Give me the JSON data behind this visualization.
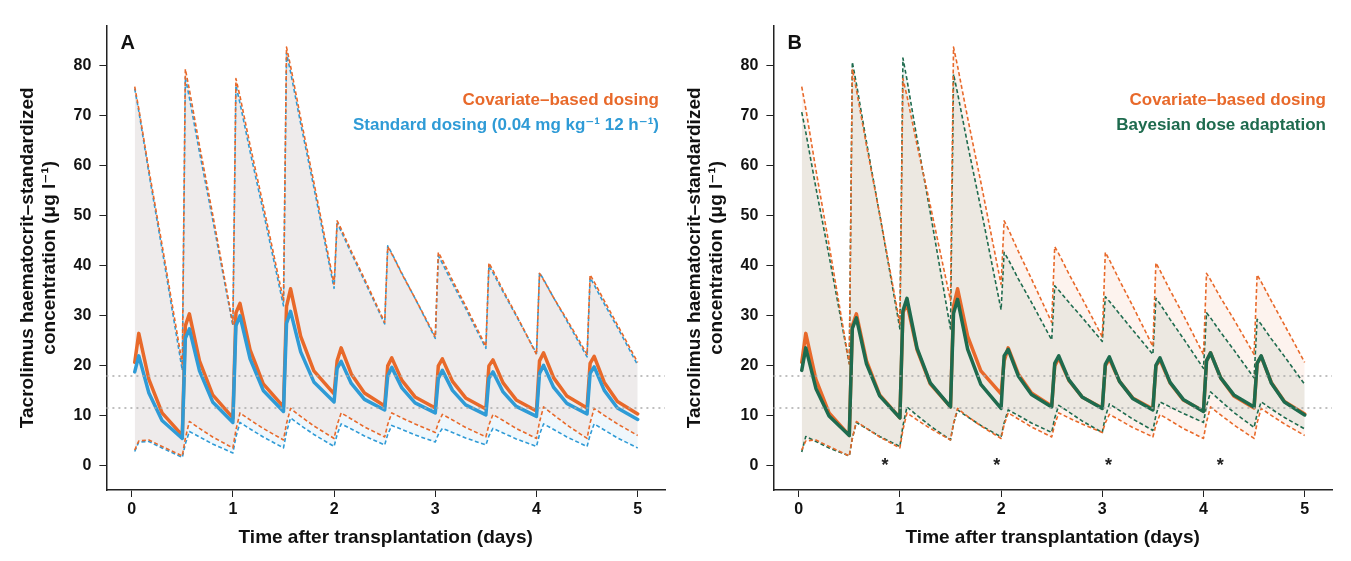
{
  "chart_data": [
    {
      "type": "line",
      "title": "A",
      "xlabel": "Time after transplantation (days)",
      "ylabel": "Tacrolimus haematocrit–standardized concentration (μg l⁻¹)",
      "xlim": [
        -0.25,
        5.27
      ],
      "xticks": [
        0,
        1,
        2,
        3,
        4,
        5
      ],
      "ylim": [
        -4.8,
        88
      ],
      "yticks": [
        0,
        10,
        20,
        30,
        40,
        50,
        60,
        70,
        80
      ],
      "legend": "top right",
      "ref_lines": [
        {
          "axis": "y",
          "value": 18,
          "color": "#aaaaaa",
          "line_style": "dotted"
        },
        {
          "axis": "y",
          "value": 11.6,
          "color": "#aaaaaa",
          "line_style": "dotted"
        }
      ],
      "x": [
        0.03,
        0.07,
        0.17,
        0.3,
        0.5,
        0.53,
        0.57,
        0.67,
        0.8,
        1.0,
        1.03,
        1.07,
        1.17,
        1.3,
        1.5,
        1.53,
        1.57,
        1.67,
        1.8,
        2.0,
        2.03,
        2.07,
        2.17,
        2.3,
        2.5,
        2.53,
        2.57,
        2.67,
        2.8,
        3.0,
        3.03,
        3.07,
        3.17,
        3.3,
        3.5,
        3.53,
        3.57,
        3.67,
        3.8,
        4.0,
        4.03,
        4.07,
        4.17,
        4.3,
        4.5,
        4.53,
        4.57,
        4.67,
        4.8,
        5.0
      ],
      "series": [
        {
          "name": "Covariate–based dosing",
          "color": "#e8692a",
          "values": [
            20.7,
            26.5,
            17.3,
            10.6,
            6.1,
            28.0,
            30.4,
            21.0,
            14.2,
            9.6,
            30.6,
            32.5,
            23.2,
            16.4,
            11.8,
            31.9,
            35.4,
            25.9,
            19.0,
            14.4,
            21.0,
            23.6,
            18.4,
            14.6,
            12.0,
            20.0,
            21.6,
            17.1,
            13.8,
            11.6,
            20.0,
            21.4,
            16.9,
            13.6,
            11.4,
            20.0,
            21.2,
            16.6,
            13.2,
            11.0,
            21.0,
            22.6,
            17.6,
            14.0,
            11.6,
            20.5,
            21.9,
            16.7,
            12.9,
            10.4
          ],
          "upper": [
            75.8,
            71.4,
            59.2,
            44.2,
            20.4,
            79.3,
            75.2,
            64.0,
            50.3,
            28.4,
            77.4,
            73.9,
            64.1,
            52.1,
            33.1,
            83.7,
            79.9,
            69.5,
            56.7,
            36.3,
            49.0,
            47.4,
            42.9,
            37.4,
            28.7,
            43.8,
            42.4,
            38.4,
            33.5,
            25.8,
            42.7,
            41.2,
            37.1,
            32.0,
            23.9,
            40.6,
            39.1,
            35.1,
            30.2,
            22.3,
            38.5,
            37.2,
            33.6,
            29.3,
            22.3,
            38.2,
            36.8,
            33.0,
            28.2,
            20.7
          ],
          "lower": [
            3.2,
            5.0,
            5.2,
            3.9,
            2.0,
            5.5,
            8.9,
            7.5,
            5.8,
            3.6,
            7.2,
            10.6,
            9.2,
            7.5,
            5.2,
            8.5,
            11.5,
            9.9,
            8.0,
            5.5,
            8.2,
            10.6,
            9.4,
            7.8,
            5.8,
            8.3,
            10.6,
            9.6,
            8.4,
            6.7,
            8.6,
            10.3,
            9.2,
            7.7,
            5.8,
            8.2,
            10.3,
            9.1,
            7.5,
            5.5,
            8.8,
            11.8,
            10.2,
            8.2,
            5.5,
            8.6,
            11.5,
            10.1,
            8.4,
            6.1
          ]
        },
        {
          "name": "Standard dosing (0.04 mg kg⁻¹ 12 h⁻¹)",
          "color": "#2f9bd6",
          "values": [
            18.8,
            22.0,
            14.6,
            9.1,
            5.5,
            25.5,
            27.4,
            19.0,
            12.8,
            8.7,
            28.0,
            30.0,
            21.4,
            15.1,
            10.9,
            28.5,
            30.9,
            22.8,
            16.8,
            12.8,
            19.5,
            20.9,
            16.5,
            13.3,
            11.2,
            18.0,
            19.7,
            15.6,
            12.6,
            10.6,
            17.5,
            19.1,
            15.1,
            12.2,
            10.2,
            17.5,
            18.8,
            14.8,
            11.9,
            9.9,
            18.5,
            20.1,
            15.7,
            12.5,
            10.4,
            18.5,
            19.8,
            15.1,
            11.6,
            9.3
          ],
          "upper": [
            75.4,
            70.9,
            58.5,
            43.3,
            19.1,
            77.6,
            73.6,
            62.7,
            49.3,
            28.0,
            76.0,
            72.5,
            62.8,
            50.9,
            32.0,
            82.5,
            78.7,
            68.4,
            55.7,
            35.5,
            48.5,
            46.9,
            42.5,
            37.0,
            28.4,
            44.0,
            42.5,
            38.5,
            33.5,
            25.5,
            42.0,
            40.5,
            36.5,
            31.5,
            23.5,
            40.0,
            38.6,
            34.8,
            30.0,
            22.5,
            38.6,
            37.3,
            33.6,
            29.0,
            21.8,
            37.6,
            36.2,
            32.4,
            27.7,
            20.2
          ],
          "lower": [
            2.9,
            4.8,
            4.9,
            3.6,
            1.7,
            4.4,
            6.9,
            5.8,
            4.4,
            2.6,
            5.8,
            8.7,
            7.4,
            5.8,
            3.6,
            6.8,
            9.6,
            8.1,
            6.3,
            3.9,
            6.3,
            8.4,
            7.4,
            6.0,
            4.2,
            6.3,
            8.1,
            7.3,
            6.2,
            4.8,
            6.3,
            7.5,
            6.7,
            5.6,
            4.2,
            6.0,
            7.5,
            6.6,
            5.4,
            3.9,
            6.3,
            8.4,
            7.3,
            5.8,
            3.9,
            6.2,
            8.4,
            7.2,
            5.6,
            3.6
          ]
        },
        {
          "color": "#e8692a",
          "line_style": "dashed",
          "values": [
            75.8,
            71.4,
            59.2,
            44.2,
            20.4,
            79.3,
            75.2,
            64.0,
            50.3,
            28.4,
            77.4,
            73.9,
            64.1,
            52.1,
            33.1,
            83.7,
            79.9,
            69.5,
            56.7,
            36.3,
            49.0,
            47.4,
            42.9,
            37.4,
            28.7,
            43.8,
            42.4,
            38.4,
            33.5,
            25.8,
            42.7,
            41.2,
            37.1,
            32.0,
            23.9,
            40.6,
            39.1,
            35.1,
            30.2,
            22.3,
            38.5,
            37.2,
            33.6,
            29.3,
            22.3,
            38.2,
            36.8,
            33.0,
            28.2,
            20.7
          ]
        },
        {
          "color": "#e8692a",
          "line_style": "dashed",
          "values": [
            3.2,
            5.0,
            5.2,
            3.9,
            2.0,
            5.5,
            8.9,
            7.5,
            5.8,
            3.6,
            7.2,
            10.6,
            9.2,
            7.5,
            5.2,
            8.5,
            11.5,
            9.9,
            8.0,
            5.5,
            8.2,
            10.6,
            9.4,
            7.8,
            5.8,
            8.3,
            10.6,
            9.6,
            8.4,
            6.7,
            8.6,
            10.3,
            9.2,
            7.7,
            5.8,
            8.2,
            10.3,
            9.1,
            7.5,
            5.5,
            8.8,
            11.8,
            10.2,
            8.2,
            5.5,
            8.6,
            11.5,
            10.1,
            8.4,
            6.1
          ]
        },
        {
          "color": "#2f9bd6",
          "line_style": "dashed",
          "values": [
            75.4,
            70.9,
            58.5,
            43.3,
            19.1,
            77.6,
            73.6,
            62.7,
            49.3,
            28.0,
            76.0,
            72.5,
            62.8,
            50.9,
            32.0,
            82.5,
            78.7,
            68.4,
            55.7,
            35.5,
            48.5,
            46.9,
            42.5,
            37.0,
            28.4,
            44.0,
            42.5,
            38.5,
            33.5,
            25.5,
            42.0,
            40.5,
            36.5,
            31.5,
            23.5,
            40.0,
            38.6,
            34.8,
            30.0,
            22.5,
            38.6,
            37.3,
            33.6,
            29.0,
            21.8,
            37.6,
            36.2,
            32.4,
            27.7,
            20.2
          ]
        },
        {
          "color": "#2f9bd6",
          "line_style": "dashed",
          "values": [
            2.9,
            4.8,
            4.9,
            3.6,
            1.7,
            4.4,
            6.9,
            5.8,
            4.4,
            2.6,
            5.8,
            8.7,
            7.4,
            5.8,
            3.6,
            6.8,
            9.6,
            8.1,
            6.3,
            3.9,
            6.3,
            8.4,
            7.4,
            6.0,
            4.2,
            6.3,
            8.1,
            7.3,
            6.2,
            4.8,
            6.3,
            7.5,
            6.7,
            5.6,
            4.2,
            6.0,
            7.5,
            6.6,
            5.4,
            3.9,
            6.3,
            8.4,
            7.3,
            5.8,
            3.9,
            6.2,
            8.4,
            7.2,
            5.6,
            3.6
          ]
        }
      ]
    },
    {
      "type": "line",
      "title": "B",
      "xlabel": "Time after transplantation (days)",
      "ylabel": "Tacrolimus haematocrit–standardized concentration (μg l⁻¹)",
      "xlim": [
        -0.25,
        5.27
      ],
      "xticks": [
        0,
        1,
        2,
        3,
        4,
        5
      ],
      "ylim": [
        -4.8,
        88
      ],
      "yticks": [
        0,
        10,
        20,
        30,
        40,
        50,
        60,
        70,
        80
      ],
      "legend": "top right",
      "ref_lines": [
        {
          "axis": "y",
          "value": 18,
          "color": "#aaaaaa",
          "line_style": "dotted"
        },
        {
          "axis": "y",
          "value": 11.6,
          "color": "#aaaaaa",
          "line_style": "dotted"
        }
      ],
      "annotations": [
        "*",
        "*",
        "*",
        "*"
      ],
      "x": [
        0.03,
        0.07,
        0.17,
        0.3,
        0.5,
        0.53,
        0.57,
        0.67,
        0.8,
        1.0,
        1.03,
        1.07,
        1.17,
        1.3,
        1.5,
        1.53,
        1.57,
        1.67,
        1.8,
        2.0,
        2.03,
        2.07,
        2.17,
        2.3,
        2.5,
        2.53,
        2.57,
        2.67,
        2.8,
        3.0,
        3.03,
        3.07,
        3.17,
        3.3,
        3.5,
        3.53,
        3.57,
        3.67,
        3.8,
        4.0,
        4.03,
        4.07,
        4.17,
        4.3,
        4.5,
        4.53,
        4.57,
        4.67,
        4.8,
        5.0
      ],
      "series": [
        {
          "name": "Covariate–based dosing",
          "color": "#e8692a",
          "values": [
            20.7,
            26.5,
            17.3,
            10.6,
            6.1,
            28.0,
            30.4,
            21.0,
            14.2,
            9.6,
            30.6,
            32.5,
            23.2,
            16.4,
            11.8,
            31.9,
            35.4,
            25.9,
            19.0,
            14.4,
            21.0,
            23.6,
            18.4,
            14.6,
            12.0,
            20.0,
            21.6,
            17.1,
            13.8,
            11.6,
            20.0,
            21.4,
            16.9,
            13.6,
            11.4,
            20.0,
            21.2,
            16.6,
            13.2,
            11.0,
            21.0,
            22.6,
            17.6,
            14.0,
            11.6,
            20.5,
            21.9,
            16.7,
            12.9,
            10.4
          ],
          "upper": [
            75.8,
            71.4,
            59.2,
            44.2,
            20.4,
            79.3,
            75.2,
            64.0,
            50.3,
            28.4,
            77.4,
            73.9,
            64.1,
            52.1,
            33.1,
            83.7,
            79.9,
            69.5,
            56.7,
            36.3,
            49.0,
            47.4,
            42.9,
            37.4,
            28.7,
            43.8,
            42.4,
            38.4,
            33.5,
            25.8,
            42.7,
            41.2,
            37.1,
            32.0,
            23.9,
            40.6,
            39.1,
            35.1,
            30.2,
            22.3,
            38.5,
            37.2,
            33.6,
            29.3,
            22.3,
            38.2,
            36.8,
            33.0,
            28.2,
            20.7
          ],
          "lower": [
            3.2,
            5.0,
            5.2,
            3.9,
            2.0,
            5.5,
            8.9,
            7.5,
            5.8,
            3.6,
            7.2,
            10.6,
            9.2,
            7.5,
            5.2,
            8.5,
            11.5,
            9.9,
            8.0,
            5.5,
            8.2,
            10.6,
            9.4,
            7.8,
            5.8,
            8.3,
            10.6,
            9.6,
            8.4,
            6.7,
            8.6,
            10.3,
            9.2,
            7.7,
            5.8,
            8.2,
            10.3,
            9.1,
            7.5,
            5.5,
            8.8,
            11.8,
            10.2,
            8.2,
            5.5,
            8.6,
            11.5,
            10.1,
            8.4,
            6.1
          ]
        },
        {
          "name": "Bayesian dose adaptation",
          "color": "#1e6b4e",
          "values": [
            19.1,
            23.6,
            15.5,
            10.0,
            6.1,
            27.5,
            29.6,
            20.4,
            14.0,
            9.6,
            31.0,
            33.5,
            23.5,
            16.6,
            11.8,
            30.5,
            33.3,
            23.3,
            16.3,
            11.5,
            22.0,
            23.3,
            18.0,
            14.3,
            11.8,
            20.5,
            22.0,
            17.2,
            13.8,
            11.5,
            20.3,
            21.8,
            16.9,
            13.5,
            11.2,
            20.1,
            21.6,
            16.7,
            13.3,
            10.9,
            21.0,
            22.6,
            17.6,
            14.2,
            11.8,
            20.5,
            22.0,
            16.6,
            12.8,
            10.2
          ],
          "upper": [
            70.7,
            66.7,
            55.6,
            42.0,
            20.4,
            80.7,
            76.4,
            64.7,
            50.3,
            27.4,
            81.5,
            77.2,
            65.3,
            50.7,
            27.4,
            78.3,
            74.5,
            64.2,
            51.5,
            31.2,
            42.7,
            41.3,
            37.4,
            32.7,
            25.2,
            36.0,
            35.1,
            32.7,
            29.7,
            24.9,
            33.8,
            32.9,
            30.4,
            27.2,
            22.3,
            33.5,
            32.4,
            29.3,
            25.5,
            19.5,
            30.6,
            29.6,
            26.7,
            23.2,
            17.6,
            29.3,
            28.3,
            25.4,
            21.9,
            16.3
          ],
          "lower": [
            2.8,
            5.9,
            4.9,
            3.6,
            2.0,
            5.5,
            8.7,
            7.5,
            5.9,
            3.9,
            8.0,
            11.8,
            10.1,
            8.0,
            5.2,
            8.4,
            11.2,
            9.8,
            8.1,
            5.8,
            8.6,
            11.2,
            10.1,
            8.6,
            6.7,
            9.6,
            12.1,
            10.8,
            9.0,
            6.7,
            9.8,
            12.4,
            11.1,
            9.4,
            7.1,
            10.1,
            12.8,
            11.8,
            10.5,
            8.7,
            12.0,
            14.8,
            13.0,
            10.7,
            7.7,
            10.4,
            12.8,
            11.4,
            9.7,
            7.4
          ]
        },
        {
          "color": "#e8692a",
          "line_style": "dashed",
          "values": [
            75.8,
            71.4,
            59.2,
            44.2,
            20.4,
            79.3,
            75.2,
            64.0,
            50.3,
            28.4,
            77.4,
            73.9,
            64.1,
            52.1,
            33.1,
            83.7,
            79.9,
            69.5,
            56.7,
            36.3,
            49.0,
            47.4,
            42.9,
            37.4,
            28.7,
            43.8,
            42.4,
            38.4,
            33.5,
            25.8,
            42.7,
            41.2,
            37.1,
            32.0,
            23.9,
            40.6,
            39.1,
            35.1,
            30.2,
            22.3,
            38.5,
            37.2,
            33.6,
            29.3,
            22.3,
            38.2,
            36.8,
            33.0,
            28.2,
            20.7
          ]
        },
        {
          "color": "#e8692a",
          "line_style": "dashed",
          "values": [
            3.2,
            5.0,
            5.2,
            3.9,
            2.0,
            5.5,
            8.9,
            7.5,
            5.8,
            3.6,
            7.2,
            10.6,
            9.2,
            7.5,
            5.2,
            8.5,
            11.5,
            9.9,
            8.0,
            5.5,
            8.2,
            10.6,
            9.4,
            7.8,
            5.8,
            8.3,
            10.6,
            9.6,
            8.4,
            6.7,
            8.6,
            10.3,
            9.2,
            7.7,
            5.8,
            8.2,
            10.3,
            9.1,
            7.5,
            5.5,
            8.8,
            11.8,
            10.2,
            8.2,
            5.5,
            8.6,
            11.5,
            10.1,
            8.4,
            6.1
          ]
        },
        {
          "color": "#1e6b4e",
          "line_style": "dashed",
          "values": [
            70.7,
            66.7,
            55.6,
            42.0,
            20.4,
            80.7,
            76.4,
            64.7,
            50.3,
            27.4,
            81.5,
            77.2,
            65.3,
            50.7,
            27.4,
            78.3,
            74.5,
            64.2,
            51.5,
            31.2,
            42.7,
            41.3,
            37.4,
            32.7,
            25.2,
            36.0,
            35.1,
            32.7,
            29.7,
            24.9,
            33.8,
            32.9,
            30.4,
            27.2,
            22.3,
            33.5,
            32.4,
            29.3,
            25.5,
            19.5,
            30.6,
            29.6,
            26.7,
            23.2,
            17.6,
            29.3,
            28.3,
            25.4,
            21.9,
            16.3
          ]
        },
        {
          "color": "#1e6b4e",
          "line_style": "dashed",
          "values": [
            2.8,
            5.9,
            4.9,
            3.6,
            2.0,
            5.5,
            8.7,
            7.5,
            5.9,
            3.9,
            8.0,
            11.8,
            10.1,
            8.0,
            5.2,
            8.4,
            11.2,
            9.8,
            8.1,
            5.8,
            8.6,
            11.2,
            10.1,
            8.6,
            6.7,
            9.6,
            12.1,
            10.8,
            9.0,
            6.7,
            9.8,
            12.4,
            11.1,
            9.4,
            7.1,
            10.1,
            12.8,
            11.8,
            10.5,
            8.7,
            12.0,
            14.8,
            13.0,
            10.7,
            7.7,
            10.4,
            12.8,
            11.4,
            9.7,
            7.4
          ]
        }
      ]
    }
  ]
}
